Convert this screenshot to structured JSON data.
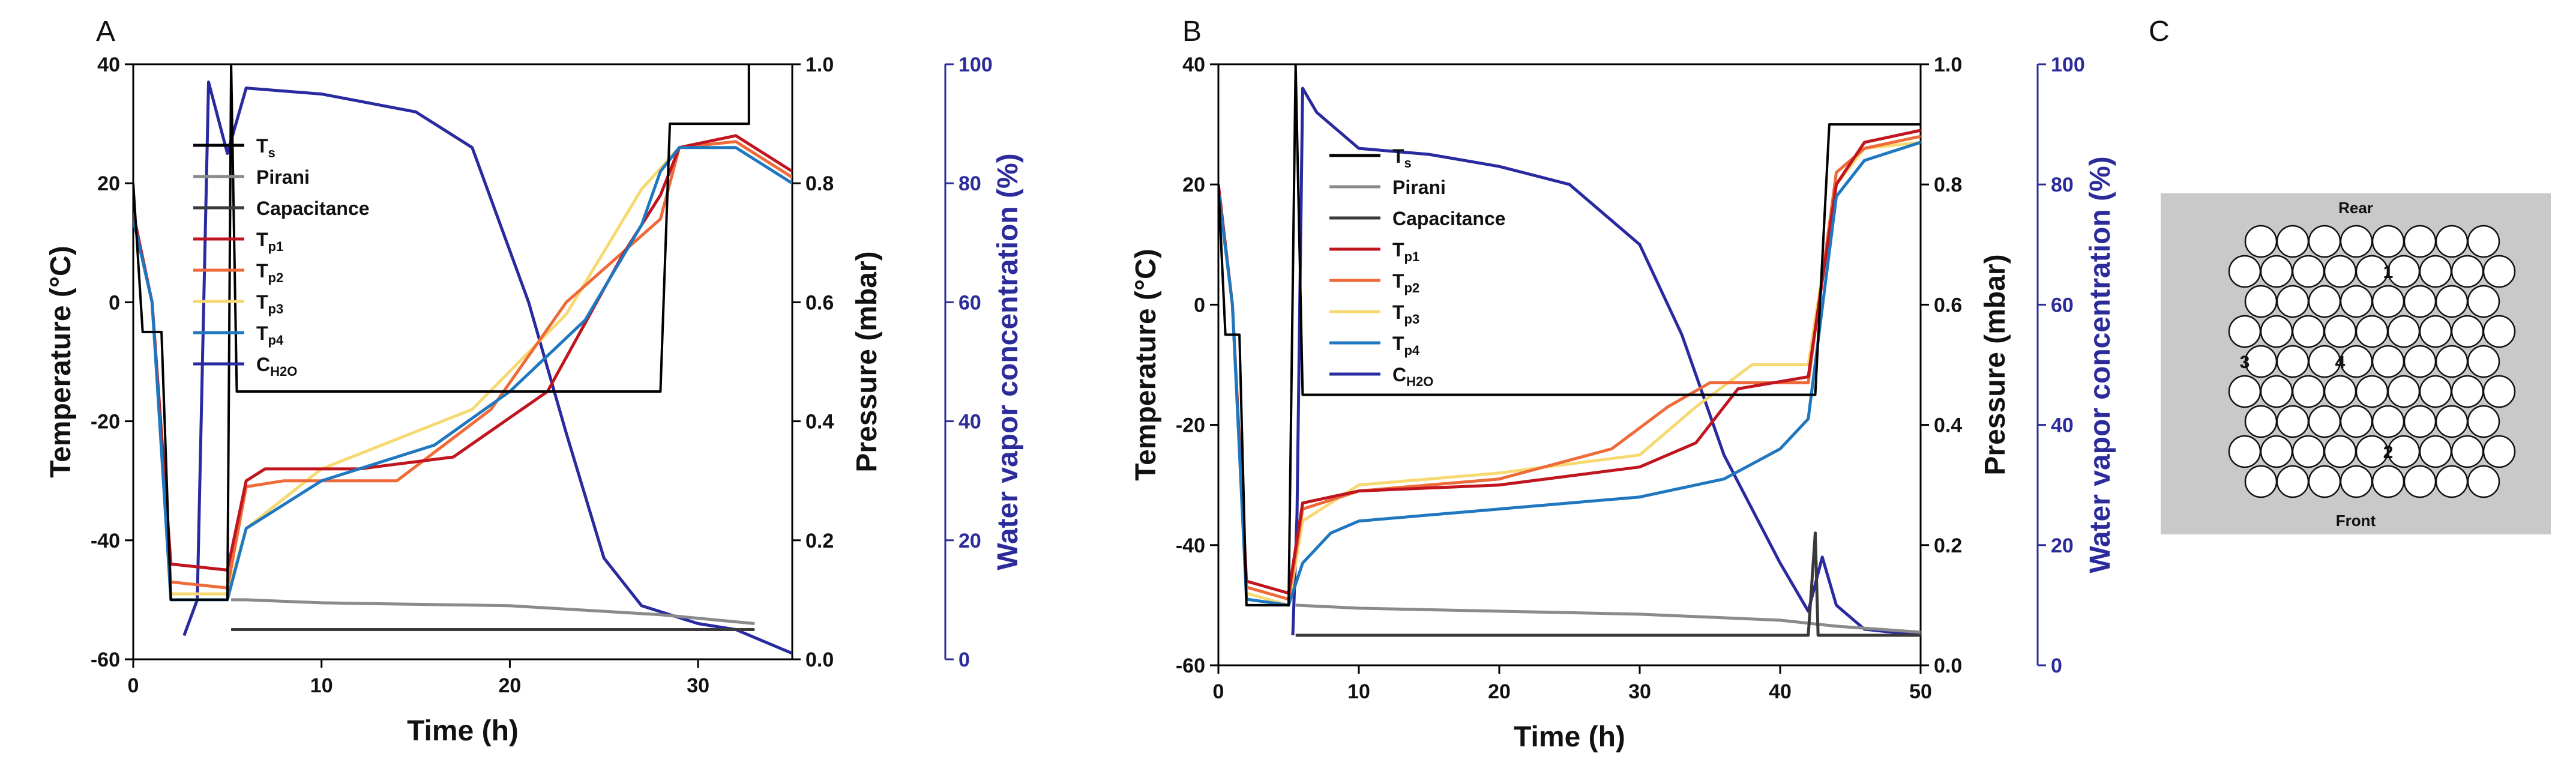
{
  "panels": {
    "a": "A",
    "b": "B",
    "c": "C"
  },
  "chart_data": [
    {
      "type": "line",
      "xlabel": "Time (h)",
      "ylabel": "Temperature (°C)",
      "y2label": "Pressure (mbar)",
      "y3label": "Water vapor concentration (%)",
      "xlim": [
        0,
        35
      ],
      "ylim": [
        -60,
        40
      ],
      "y2lim": [
        0,
        1
      ],
      "y3lim": [
        0,
        100
      ],
      "xticks": [
        "0",
        "10",
        "20",
        "30"
      ],
      "yticks": [
        "40",
        "20",
        "0",
        "-20",
        "-40",
        "-60"
      ],
      "y2ticks": [
        "1.0",
        "0.8",
        "0.6",
        "0.4",
        "0.2",
        "0.0"
      ],
      "y3ticks": [
        "100",
        "80",
        "60",
        "40",
        "20",
        "0"
      ],
      "legend": [
        "T",
        "Pirani",
        "Capacitance",
        "T",
        "T",
        "T",
        "T",
        "C"
      ],
      "legend_subs": [
        "s",
        "",
        "",
        "p1",
        "p2",
        "p3",
        "p4",
        "H2O"
      ],
      "series": [
        {
          "name": "Ts",
          "axis": "temp",
          "color": "#000000",
          "points": [
            [
              0,
              20
            ],
            [
              0.5,
              -5
            ],
            [
              1.5,
              -5
            ],
            [
              2,
              -50
            ],
            [
              5,
              -50
            ],
            [
              5.2,
              40
            ],
            [
              5.5,
              -15
            ],
            [
              6,
              -15
            ],
            [
              28,
              -15
            ],
            [
              28.5,
              30
            ],
            [
              32.7,
              30
            ],
            [
              32.7,
              40
            ]
          ]
        },
        {
          "name": "Pirani",
          "axis": "press",
          "color": "#8a8a8a",
          "points": [
            [
              5.2,
              0.1
            ],
            [
              6,
              0.1
            ],
            [
              10,
              0.095
            ],
            [
              20,
              0.09
            ],
            [
              28,
              0.075
            ],
            [
              33,
              0.06
            ]
          ]
        },
        {
          "name": "Capacitance",
          "axis": "press",
          "color": "#3a3a3a",
          "points": [
            [
              5.2,
              0.05
            ],
            [
              10,
              0.05
            ],
            [
              20,
              0.05
            ],
            [
              30,
              0.05
            ],
            [
              33,
              0.05
            ]
          ]
        },
        {
          "name": "Tp1",
          "axis": "temp",
          "color": "#c0141e",
          "points": [
            [
              0,
              15
            ],
            [
              1,
              0
            ],
            [
              2,
              -44
            ],
            [
              5,
              -45
            ],
            [
              6,
              -30
            ],
            [
              7,
              -28
            ],
            [
              12,
              -28
            ],
            [
              17,
              -26
            ],
            [
              22,
              -15
            ],
            [
              26,
              8
            ],
            [
              28,
              18
            ],
            [
              29,
              26
            ],
            [
              32,
              28
            ],
            [
              35,
              22
            ]
          ]
        },
        {
          "name": "Tp2",
          "axis": "temp",
          "color": "#ee6a38",
          "points": [
            [
              0,
              14
            ],
            [
              1,
              0
            ],
            [
              2,
              -47
            ],
            [
              5,
              -48
            ],
            [
              6,
              -31
            ],
            [
              8,
              -30
            ],
            [
              14,
              -30
            ],
            [
              19,
              -18
            ],
            [
              23,
              0
            ],
            [
              28,
              14
            ],
            [
              29,
              26
            ],
            [
              32,
              27
            ],
            [
              35,
              21
            ]
          ]
        },
        {
          "name": "Tp3",
          "axis": "temp",
          "color": "#f7d972",
          "points": [
            [
              0,
              14
            ],
            [
              1,
              0
            ],
            [
              2,
              -49
            ],
            [
              5,
              -49
            ],
            [
              6,
              -38
            ],
            [
              10,
              -28
            ],
            [
              18,
              -18
            ],
            [
              23,
              -2
            ],
            [
              27,
              19
            ],
            [
              29,
              26
            ],
            [
              32,
              27
            ],
            [
              35,
              21
            ]
          ]
        },
        {
          "name": "Tp4",
          "axis": "temp",
          "color": "#1f77c0",
          "points": [
            [
              0,
              14
            ],
            [
              1,
              0
            ],
            [
              2,
              -50
            ],
            [
              5,
              -50
            ],
            [
              6,
              -38
            ],
            [
              10,
              -30
            ],
            [
              16,
              -24
            ],
            [
              20,
              -15
            ],
            [
              24,
              -3
            ],
            [
              27,
              13
            ],
            [
              28,
              22
            ],
            [
              29,
              26
            ],
            [
              32,
              26
            ],
            [
              35,
              20
            ]
          ]
        },
        {
          "name": "CH2O",
          "axis": "water",
          "color": "#2929a0",
          "points": [
            [
              2.7,
              4
            ],
            [
              3.4,
              10
            ],
            [
              4,
              97
            ],
            [
              5,
              85
            ],
            [
              6,
              96
            ],
            [
              10,
              95
            ],
            [
              15,
              92
            ],
            [
              18,
              86
            ],
            [
              21,
              60
            ],
            [
              23,
              38
            ],
            [
              25,
              17
            ],
            [
              27,
              9
            ],
            [
              30,
              6
            ],
            [
              32,
              5
            ],
            [
              35,
              1
            ]
          ]
        }
      ]
    },
    {
      "type": "line",
      "xlabel": "Time (h)",
      "ylabel": "Temperature (°C)",
      "y2label": "Pressure (mbar)",
      "y3label": "Water vapor concentration (%)",
      "xlim": [
        0,
        50
      ],
      "ylim": [
        -60,
        40
      ],
      "y2lim": [
        0,
        1
      ],
      "y3lim": [
        0,
        100
      ],
      "xticks": [
        "0",
        "10",
        "20",
        "30",
        "40",
        "50"
      ],
      "yticks": [
        "40",
        "20",
        "0",
        "-20",
        "-40",
        "-60"
      ],
      "y2ticks": [
        "1.0",
        "0.8",
        "0.6",
        "0.4",
        "0.2",
        "0.0"
      ],
      "y3ticks": [
        "100",
        "80",
        "60",
        "40",
        "20",
        "0"
      ],
      "legend": [
        "T",
        "Pirani",
        "Capacitance",
        "T",
        "T",
        "T",
        "T",
        "C"
      ],
      "legend_subs": [
        "s",
        "",
        "",
        "p1",
        "p2",
        "p3",
        "p4",
        "H2O"
      ],
      "series": [
        {
          "name": "Ts",
          "axis": "temp",
          "color": "#000000",
          "points": [
            [
              0,
              20
            ],
            [
              0.5,
              -5
            ],
            [
              1.5,
              -5
            ],
            [
              2,
              -50
            ],
            [
              5,
              -50
            ],
            [
              5.5,
              40
            ],
            [
              6,
              -15
            ],
            [
              6.5,
              -15
            ],
            [
              42.5,
              -15
            ],
            [
              43.5,
              30
            ],
            [
              50,
              30
            ]
          ]
        },
        {
          "name": "Pirani",
          "axis": "press",
          "color": "#8a8a8a",
          "points": [
            [
              5.5,
              0.1
            ],
            [
              10,
              0.095
            ],
            [
              20,
              0.09
            ],
            [
              30,
              0.085
            ],
            [
              40,
              0.075
            ],
            [
              44,
              0.065
            ],
            [
              50,
              0.055
            ]
          ]
        },
        {
          "name": "Capacitance",
          "axis": "press",
          "color": "#3a3a3a",
          "points": [
            [
              5.5,
              0.05
            ],
            [
              20,
              0.05
            ],
            [
              42,
              0.05
            ],
            [
              42.5,
              0.22
            ],
            [
              42.7,
              0.05
            ],
            [
              50,
              0.05
            ]
          ]
        },
        {
          "name": "Tp1",
          "axis": "temp",
          "color": "#c0141e",
          "points": [
            [
              0,
              20
            ],
            [
              1,
              0
            ],
            [
              2,
              -46
            ],
            [
              5,
              -48
            ],
            [
              6,
              -33
            ],
            [
              10,
              -31
            ],
            [
              20,
              -30
            ],
            [
              30,
              -27
            ],
            [
              34,
              -23
            ],
            [
              37,
              -14
            ],
            [
              42,
              -12
            ],
            [
              44,
              20
            ],
            [
              46,
              27
            ],
            [
              50,
              29
            ]
          ]
        },
        {
          "name": "Tp2",
          "axis": "temp",
          "color": "#ee6a38",
          "points": [
            [
              0,
              19
            ],
            [
              1,
              0
            ],
            [
              2,
              -47
            ],
            [
              5,
              -49
            ],
            [
              6,
              -34
            ],
            [
              10,
              -31
            ],
            [
              20,
              -29
            ],
            [
              28,
              -24
            ],
            [
              32,
              -17
            ],
            [
              35,
              -13
            ],
            [
              42,
              -13
            ],
            [
              44,
              22
            ],
            [
              46,
              26
            ],
            [
              50,
              28
            ]
          ]
        },
        {
          "name": "Tp3",
          "axis": "temp",
          "color": "#f7d972",
          "points": [
            [
              0,
              19
            ],
            [
              1,
              0
            ],
            [
              2,
              -48
            ],
            [
              5,
              -50
            ],
            [
              6,
              -36
            ],
            [
              10,
              -30
            ],
            [
              20,
              -28
            ],
            [
              30,
              -25
            ],
            [
              34,
              -17
            ],
            [
              38,
              -10
            ],
            [
              42,
              -10
            ],
            [
              44,
              20
            ],
            [
              46,
              26
            ],
            [
              50,
              27
            ]
          ]
        },
        {
          "name": "Tp4",
          "axis": "temp",
          "color": "#1f77c0",
          "points": [
            [
              0,
              19
            ],
            [
              1,
              0
            ],
            [
              2,
              -49
            ],
            [
              5,
              -50
            ],
            [
              6,
              -43
            ],
            [
              8,
              -38
            ],
            [
              10,
              -36
            ],
            [
              20,
              -34
            ],
            [
              30,
              -32
            ],
            [
              36,
              -29
            ],
            [
              40,
              -24
            ],
            [
              42,
              -19
            ],
            [
              44,
              18
            ],
            [
              46,
              24
            ],
            [
              50,
              27
            ]
          ]
        },
        {
          "name": "CH2O",
          "axis": "water",
          "color": "#2929a0",
          "points": [
            [
              5.3,
              5
            ],
            [
              5.6,
              25
            ],
            [
              6,
              96
            ],
            [
              7,
              92
            ],
            [
              10,
              86
            ],
            [
              15,
              85
            ],
            [
              20,
              83
            ],
            [
              25,
              80
            ],
            [
              30,
              70
            ],
            [
              33,
              55
            ],
            [
              36,
              35
            ],
            [
              40,
              17
            ],
            [
              42,
              9
            ],
            [
              43,
              18
            ],
            [
              44,
              10
            ],
            [
              46,
              6
            ],
            [
              50,
              5
            ]
          ]
        }
      ]
    }
  ],
  "diagram": {
    "top_label": "Rear",
    "bottom_label": "Front",
    "markers": [
      "1",
      "2",
      "3",
      "4"
    ]
  }
}
